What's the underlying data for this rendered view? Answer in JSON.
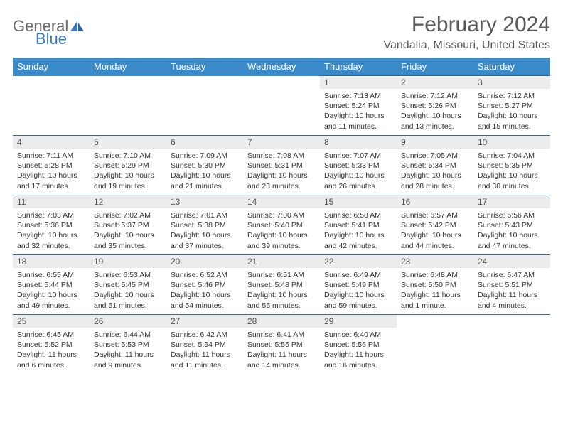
{
  "logo": {
    "text1": "General",
    "text2": "Blue"
  },
  "title": "February 2024",
  "location": "Vandalia, Missouri, United States",
  "colors": {
    "header_bg": "#3a89c9",
    "header_text": "#ffffff",
    "daynum_bg": "#ececec",
    "border": "#3a6a8c",
    "logo_gray": "#6b6b6b",
    "logo_blue": "#3a7ab8",
    "text": "#333333",
    "title_color": "#5a5a5a"
  },
  "days_of_week": [
    "Sunday",
    "Monday",
    "Tuesday",
    "Wednesday",
    "Thursday",
    "Friday",
    "Saturday"
  ],
  "weeks": [
    [
      null,
      null,
      null,
      null,
      {
        "n": "1",
        "sr": "Sunrise: 7:13 AM",
        "ss": "Sunset: 5:24 PM",
        "dl": "Daylight: 10 hours and 11 minutes."
      },
      {
        "n": "2",
        "sr": "Sunrise: 7:12 AM",
        "ss": "Sunset: 5:26 PM",
        "dl": "Daylight: 10 hours and 13 minutes."
      },
      {
        "n": "3",
        "sr": "Sunrise: 7:12 AM",
        "ss": "Sunset: 5:27 PM",
        "dl": "Daylight: 10 hours and 15 minutes."
      }
    ],
    [
      {
        "n": "4",
        "sr": "Sunrise: 7:11 AM",
        "ss": "Sunset: 5:28 PM",
        "dl": "Daylight: 10 hours and 17 minutes."
      },
      {
        "n": "5",
        "sr": "Sunrise: 7:10 AM",
        "ss": "Sunset: 5:29 PM",
        "dl": "Daylight: 10 hours and 19 minutes."
      },
      {
        "n": "6",
        "sr": "Sunrise: 7:09 AM",
        "ss": "Sunset: 5:30 PM",
        "dl": "Daylight: 10 hours and 21 minutes."
      },
      {
        "n": "7",
        "sr": "Sunrise: 7:08 AM",
        "ss": "Sunset: 5:31 PM",
        "dl": "Daylight: 10 hours and 23 minutes."
      },
      {
        "n": "8",
        "sr": "Sunrise: 7:07 AM",
        "ss": "Sunset: 5:33 PM",
        "dl": "Daylight: 10 hours and 26 minutes."
      },
      {
        "n": "9",
        "sr": "Sunrise: 7:05 AM",
        "ss": "Sunset: 5:34 PM",
        "dl": "Daylight: 10 hours and 28 minutes."
      },
      {
        "n": "10",
        "sr": "Sunrise: 7:04 AM",
        "ss": "Sunset: 5:35 PM",
        "dl": "Daylight: 10 hours and 30 minutes."
      }
    ],
    [
      {
        "n": "11",
        "sr": "Sunrise: 7:03 AM",
        "ss": "Sunset: 5:36 PM",
        "dl": "Daylight: 10 hours and 32 minutes."
      },
      {
        "n": "12",
        "sr": "Sunrise: 7:02 AM",
        "ss": "Sunset: 5:37 PM",
        "dl": "Daylight: 10 hours and 35 minutes."
      },
      {
        "n": "13",
        "sr": "Sunrise: 7:01 AM",
        "ss": "Sunset: 5:38 PM",
        "dl": "Daylight: 10 hours and 37 minutes."
      },
      {
        "n": "14",
        "sr": "Sunrise: 7:00 AM",
        "ss": "Sunset: 5:40 PM",
        "dl": "Daylight: 10 hours and 39 minutes."
      },
      {
        "n": "15",
        "sr": "Sunrise: 6:58 AM",
        "ss": "Sunset: 5:41 PM",
        "dl": "Daylight: 10 hours and 42 minutes."
      },
      {
        "n": "16",
        "sr": "Sunrise: 6:57 AM",
        "ss": "Sunset: 5:42 PM",
        "dl": "Daylight: 10 hours and 44 minutes."
      },
      {
        "n": "17",
        "sr": "Sunrise: 6:56 AM",
        "ss": "Sunset: 5:43 PM",
        "dl": "Daylight: 10 hours and 47 minutes."
      }
    ],
    [
      {
        "n": "18",
        "sr": "Sunrise: 6:55 AM",
        "ss": "Sunset: 5:44 PM",
        "dl": "Daylight: 10 hours and 49 minutes."
      },
      {
        "n": "19",
        "sr": "Sunrise: 6:53 AM",
        "ss": "Sunset: 5:45 PM",
        "dl": "Daylight: 10 hours and 51 minutes."
      },
      {
        "n": "20",
        "sr": "Sunrise: 6:52 AM",
        "ss": "Sunset: 5:46 PM",
        "dl": "Daylight: 10 hours and 54 minutes."
      },
      {
        "n": "21",
        "sr": "Sunrise: 6:51 AM",
        "ss": "Sunset: 5:48 PM",
        "dl": "Daylight: 10 hours and 56 minutes."
      },
      {
        "n": "22",
        "sr": "Sunrise: 6:49 AM",
        "ss": "Sunset: 5:49 PM",
        "dl": "Daylight: 10 hours and 59 minutes."
      },
      {
        "n": "23",
        "sr": "Sunrise: 6:48 AM",
        "ss": "Sunset: 5:50 PM",
        "dl": "Daylight: 11 hours and 1 minute."
      },
      {
        "n": "24",
        "sr": "Sunrise: 6:47 AM",
        "ss": "Sunset: 5:51 PM",
        "dl": "Daylight: 11 hours and 4 minutes."
      }
    ],
    [
      {
        "n": "25",
        "sr": "Sunrise: 6:45 AM",
        "ss": "Sunset: 5:52 PM",
        "dl": "Daylight: 11 hours and 6 minutes."
      },
      {
        "n": "26",
        "sr": "Sunrise: 6:44 AM",
        "ss": "Sunset: 5:53 PM",
        "dl": "Daylight: 11 hours and 9 minutes."
      },
      {
        "n": "27",
        "sr": "Sunrise: 6:42 AM",
        "ss": "Sunset: 5:54 PM",
        "dl": "Daylight: 11 hours and 11 minutes."
      },
      {
        "n": "28",
        "sr": "Sunrise: 6:41 AM",
        "ss": "Sunset: 5:55 PM",
        "dl": "Daylight: 11 hours and 14 minutes."
      },
      {
        "n": "29",
        "sr": "Sunrise: 6:40 AM",
        "ss": "Sunset: 5:56 PM",
        "dl": "Daylight: 11 hours and 16 minutes."
      },
      null,
      null
    ]
  ]
}
